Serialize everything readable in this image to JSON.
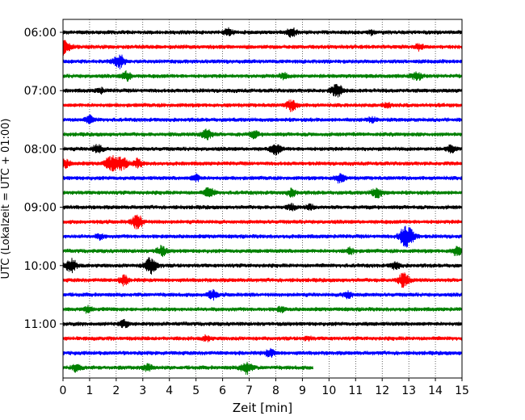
{
  "chart_data": {
    "type": "line",
    "subtype": "helicorder",
    "title": "",
    "xlabel": "Zeit  [min]",
    "ylabel": "UTC (Lokalzeit = UTC + 01:00)",
    "xlim": [
      0,
      15
    ],
    "x_ticks": [
      "0",
      "1",
      "2",
      "3",
      "4",
      "5",
      "6",
      "7",
      "8",
      "9",
      "10",
      "11",
      "12",
      "13",
      "14",
      "15"
    ],
    "y_ticks": [
      "06:00",
      "07:00",
      "08:00",
      "09:00",
      "10:00",
      "11:00"
    ],
    "grid": "vertical-dotted",
    "line_minutes": 15,
    "trace_colors": [
      "#000000",
      "#ff0000",
      "#0000ff",
      "#008000"
    ],
    "traces": [
      {
        "start": "06:00",
        "end_min": 15,
        "events": [
          [
            6.2,
            0.45
          ],
          [
            8.6,
            0.55
          ],
          [
            11.6,
            0.25
          ]
        ]
      },
      {
        "start": "06:15",
        "end_min": 15,
        "events": [
          [
            0.05,
            1.0
          ],
          [
            13.4,
            0.35
          ]
        ]
      },
      {
        "start": "06:30",
        "end_min": 15,
        "events": [
          [
            2.1,
            0.85
          ]
        ]
      },
      {
        "start": "06:45",
        "end_min": 15,
        "events": [
          [
            2.4,
            0.55
          ],
          [
            8.3,
            0.35
          ],
          [
            13.3,
            0.5
          ]
        ]
      },
      {
        "start": "07:00",
        "end_min": 15,
        "events": [
          [
            1.4,
            0.3
          ],
          [
            10.3,
            0.8
          ]
        ]
      },
      {
        "start": "07:15",
        "end_min": 15,
        "events": [
          [
            8.6,
            0.7
          ],
          [
            12.2,
            0.3
          ]
        ]
      },
      {
        "start": "07:30",
        "end_min": 15,
        "events": [
          [
            1.0,
            0.45
          ],
          [
            11.6,
            0.3
          ]
        ]
      },
      {
        "start": "07:45",
        "end_min": 15,
        "events": [
          [
            5.4,
            0.7
          ],
          [
            7.2,
            0.4
          ]
        ]
      },
      {
        "start": "08:00",
        "end_min": 15,
        "events": [
          [
            1.3,
            0.55
          ],
          [
            8.0,
            0.65
          ],
          [
            14.6,
            0.45
          ]
        ]
      },
      {
        "start": "08:15",
        "end_min": 15,
        "events": [
          [
            1.8,
            0.9
          ],
          [
            2.2,
            0.8
          ],
          [
            2.8,
            0.5
          ],
          [
            0.1,
            0.5
          ]
        ]
      },
      {
        "start": "08:30",
        "end_min": 15,
        "events": [
          [
            5.0,
            0.4
          ],
          [
            10.4,
            0.55
          ]
        ]
      },
      {
        "start": "08:45",
        "end_min": 15,
        "events": [
          [
            5.5,
            0.6
          ],
          [
            8.6,
            0.45
          ],
          [
            11.8,
            0.65
          ]
        ]
      },
      {
        "start": "09:00",
        "end_min": 15,
        "events": [
          [
            8.6,
            0.35
          ],
          [
            9.3,
            0.3
          ]
        ]
      },
      {
        "start": "09:15",
        "end_min": 15,
        "events": [
          [
            2.8,
            0.85
          ]
        ]
      },
      {
        "start": "09:30",
        "end_min": 15,
        "events": [
          [
            1.4,
            0.3
          ],
          [
            12.8,
            0.7
          ],
          [
            13.0,
            1.0
          ]
        ]
      },
      {
        "start": "09:45",
        "end_min": 15,
        "events": [
          [
            3.7,
            0.6
          ],
          [
            10.8,
            0.35
          ],
          [
            14.8,
            0.55
          ]
        ]
      },
      {
        "start": "10:00",
        "end_min": 15,
        "events": [
          [
            0.3,
            0.8
          ],
          [
            3.3,
            1.0
          ],
          [
            12.5,
            0.45
          ]
        ]
      },
      {
        "start": "10:15",
        "end_min": 15,
        "events": [
          [
            2.3,
            0.55
          ],
          [
            12.8,
            0.85
          ]
        ]
      },
      {
        "start": "10:30",
        "end_min": 15,
        "events": [
          [
            5.6,
            0.55
          ],
          [
            10.7,
            0.45
          ]
        ]
      },
      {
        "start": "10:45",
        "end_min": 15,
        "events": [
          [
            0.9,
            0.4
          ],
          [
            8.2,
            0.3
          ]
        ]
      },
      {
        "start": "11:00",
        "end_min": 15,
        "events": [
          [
            2.3,
            0.45
          ]
        ]
      },
      {
        "start": "11:15",
        "end_min": 15,
        "events": [
          [
            5.4,
            0.3
          ],
          [
            9.2,
            0.2
          ]
        ]
      },
      {
        "start": "11:30",
        "end_min": 15,
        "events": [
          [
            7.8,
            0.5
          ]
        ]
      },
      {
        "start": "11:45",
        "end_min": 9.4,
        "events": [
          [
            0.5,
            0.45
          ],
          [
            3.2,
            0.45
          ],
          [
            6.9,
            0.75
          ]
        ]
      }
    ]
  }
}
